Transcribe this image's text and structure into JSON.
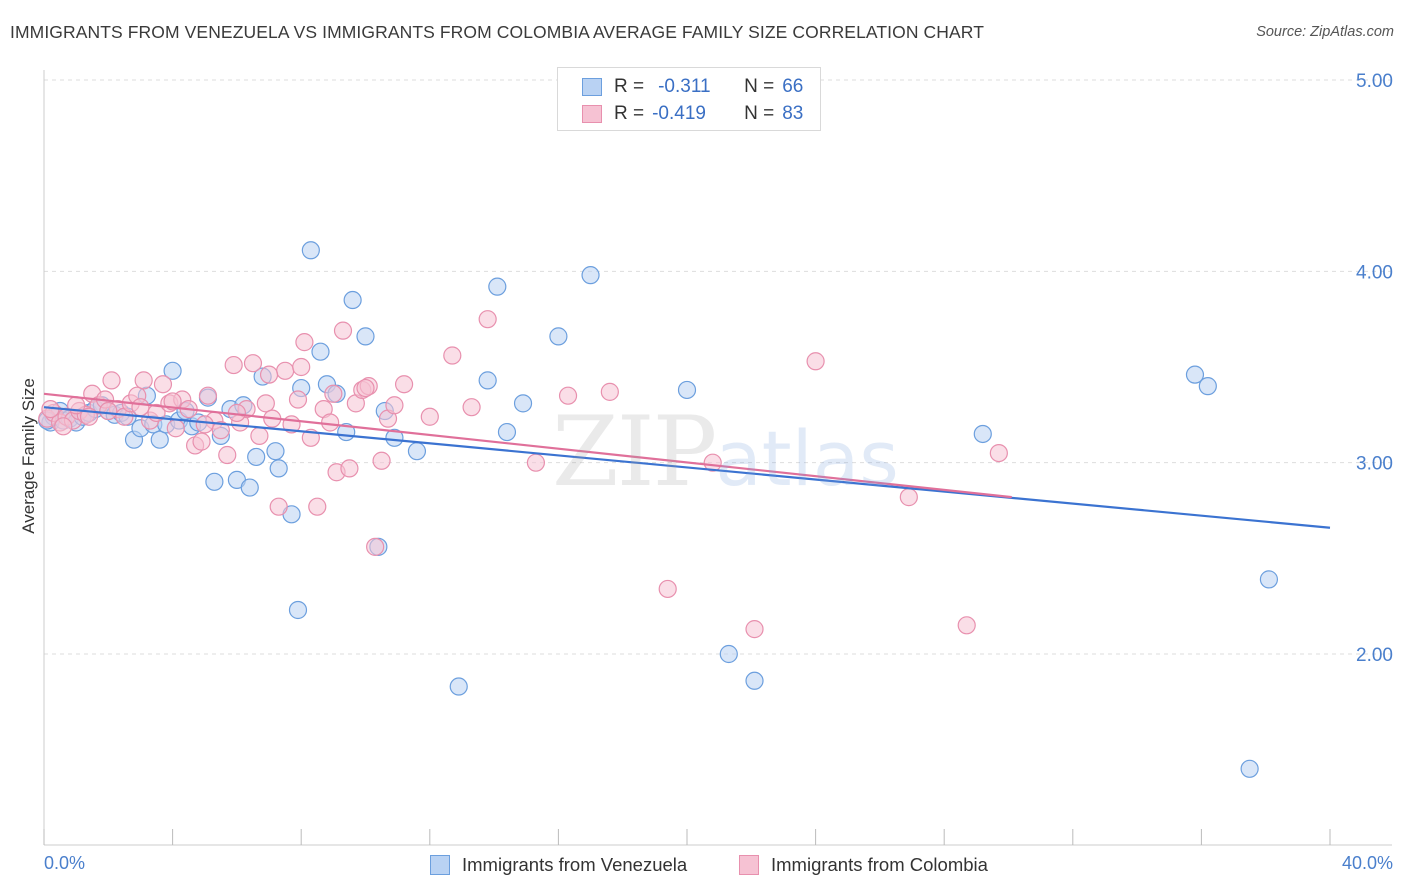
{
  "title": "IMMIGRANTS FROM VENEZUELA VS IMMIGRANTS FROM COLOMBIA AVERAGE FAMILY SIZE CORRELATION CHART",
  "source": "Source: ZipAtlas.com",
  "watermark": {
    "zip": "ZIP",
    "atlas": "atlas"
  },
  "legend": {
    "rows": [
      {
        "r_label": "R =",
        "r_value": "-0.311",
        "n_label": "N =",
        "n_value": "66"
      },
      {
        "r_label": "R =",
        "r_value": "-0.419",
        "n_label": "N =",
        "n_value": "83"
      }
    ]
  },
  "bottom_legend": {
    "venezuela": "Immigrants from Venezuela",
    "colombia": "Immigrants from Colombia"
  },
  "colors": {
    "venezuela_fill": "#b9d2f3",
    "venezuela_stroke": "#6c9fde",
    "venezuela_line": "#3b73d1",
    "colombia_fill": "#f6c2d3",
    "colombia_stroke": "#e890ae",
    "colombia_line": "#e0709a",
    "tick_text": "#4a7fcc",
    "grid": "#dddddd"
  },
  "chart_data": {
    "type": "scatter",
    "title": "IMMIGRANTS FROM VENEZUELA VS IMMIGRANTS FROM COLOMBIA AVERAGE FAMILY SIZE CORRELATION CHART",
    "xlabel": "",
    "ylabel": "Average Family Size",
    "xlim": [
      0,
      40
    ],
    "ylim": [
      1.0,
      5.15
    ],
    "x_tick_labels": [
      "0.0%",
      "40.0%"
    ],
    "y_ticks": [
      2.0,
      3.0,
      4.0,
      5.0
    ],
    "y_tick_labels": [
      "2.00",
      "3.00",
      "4.00",
      "5.00"
    ],
    "grid": "horizontal dashed",
    "legend_position": "top-center",
    "series": [
      {
        "name": "Immigrants from Venezuela",
        "r": -0.311,
        "n": 66,
        "trend": {
          "x": [
            0,
            40
          ],
          "y": [
            3.29,
            2.66
          ]
        },
        "points": [
          [
            0.2,
            3.21
          ],
          [
            0.3,
            3.24
          ],
          [
            0.5,
            3.27
          ],
          [
            0.6,
            3.22
          ],
          [
            0.8,
            3.23
          ],
          [
            1.0,
            3.21
          ],
          [
            1.2,
            3.24
          ],
          [
            1.4,
            3.26
          ],
          [
            1.6,
            3.28
          ],
          [
            1.8,
            3.3
          ],
          [
            2.0,
            3.27
          ],
          [
            2.2,
            3.25
          ],
          [
            2.4,
            3.26
          ],
          [
            2.6,
            3.24
          ],
          [
            2.8,
            3.12
          ],
          [
            3.0,
            3.18
          ],
          [
            3.2,
            3.35
          ],
          [
            3.4,
            3.2
          ],
          [
            3.6,
            3.12
          ],
          [
            3.8,
            3.2
          ],
          [
            4.0,
            3.48
          ],
          [
            4.2,
            3.22
          ],
          [
            4.4,
            3.27
          ],
          [
            4.6,
            3.19
          ],
          [
            4.8,
            3.21
          ],
          [
            5.1,
            3.34
          ],
          [
            5.3,
            2.9
          ],
          [
            5.5,
            3.14
          ],
          [
            5.8,
            3.28
          ],
          [
            6.0,
            2.91
          ],
          [
            6.2,
            3.3
          ],
          [
            6.4,
            2.87
          ],
          [
            6.6,
            3.03
          ],
          [
            6.8,
            3.45
          ],
          [
            7.2,
            3.06
          ],
          [
            7.3,
            2.97
          ],
          [
            7.7,
            2.73
          ],
          [
            7.9,
            2.23
          ],
          [
            8.0,
            3.39
          ],
          [
            8.3,
            4.11
          ],
          [
            8.6,
            3.58
          ],
          [
            8.8,
            3.41
          ],
          [
            9.1,
            3.36
          ],
          [
            9.4,
            3.16
          ],
          [
            9.6,
            3.85
          ],
          [
            10.0,
            3.66
          ],
          [
            10.4,
            2.56
          ],
          [
            10.6,
            3.27
          ],
          [
            10.9,
            3.13
          ],
          [
            11.6,
            3.06
          ],
          [
            12.9,
            1.83
          ],
          [
            13.8,
            3.43
          ],
          [
            14.1,
            3.92
          ],
          [
            14.4,
            3.16
          ],
          [
            14.9,
            3.31
          ],
          [
            16.0,
            3.66
          ],
          [
            17.0,
            3.98
          ],
          [
            20.0,
            3.38
          ],
          [
            21.3,
            2.0
          ],
          [
            22.1,
            1.86
          ],
          [
            29.2,
            3.15
          ],
          [
            35.8,
            3.46
          ],
          [
            36.2,
            3.4
          ],
          [
            37.5,
            1.4
          ],
          [
            38.1,
            2.39
          ],
          [
            0.1,
            3.22
          ]
        ]
      },
      {
        "name": "Immigrants from Colombia",
        "r": -0.419,
        "n": 83,
        "trend": {
          "x": [
            0,
            30.1
          ],
          "y": [
            3.36,
            2.82
          ]
        },
        "points": [
          [
            0.1,
            3.23
          ],
          [
            0.3,
            3.26
          ],
          [
            0.5,
            3.21
          ],
          [
            0.7,
            3.24
          ],
          [
            0.9,
            3.22
          ],
          [
            1.1,
            3.27
          ],
          [
            1.3,
            3.25
          ],
          [
            1.5,
            3.36
          ],
          [
            1.7,
            3.3
          ],
          [
            1.9,
            3.33
          ],
          [
            2.1,
            3.43
          ],
          [
            2.3,
            3.28
          ],
          [
            2.5,
            3.24
          ],
          [
            2.7,
            3.31
          ],
          [
            2.9,
            3.35
          ],
          [
            3.1,
            3.43
          ],
          [
            3.3,
            3.22
          ],
          [
            3.5,
            3.26
          ],
          [
            3.7,
            3.41
          ],
          [
            3.9,
            3.31
          ],
          [
            4.1,
            3.18
          ],
          [
            4.3,
            3.33
          ],
          [
            4.5,
            3.28
          ],
          [
            4.7,
            3.09
          ],
          [
            4.9,
            3.11
          ],
          [
            5.1,
            3.35
          ],
          [
            5.3,
            3.22
          ],
          [
            5.5,
            3.17
          ],
          [
            5.7,
            3.04
          ],
          [
            5.9,
            3.51
          ],
          [
            6.1,
            3.21
          ],
          [
            6.3,
            3.28
          ],
          [
            6.5,
            3.52
          ],
          [
            6.7,
            3.14
          ],
          [
            6.9,
            3.31
          ],
          [
            7.1,
            3.23
          ],
          [
            7.3,
            2.77
          ],
          [
            7.5,
            3.48
          ],
          [
            7.7,
            3.2
          ],
          [
            7.9,
            3.33
          ],
          [
            8.1,
            3.63
          ],
          [
            8.3,
            3.13
          ],
          [
            8.5,
            2.77
          ],
          [
            8.7,
            3.28
          ],
          [
            8.9,
            3.21
          ],
          [
            9.1,
            2.95
          ],
          [
            9.3,
            3.69
          ],
          [
            9.5,
            2.97
          ],
          [
            9.7,
            3.31
          ],
          [
            9.9,
            3.38
          ],
          [
            10.1,
            3.4
          ],
          [
            10.3,
            2.56
          ],
          [
            10.5,
            3.01
          ],
          [
            10.7,
            3.23
          ],
          [
            10.9,
            3.3
          ],
          [
            11.2,
            3.41
          ],
          [
            12.0,
            3.24
          ],
          [
            12.7,
            3.56
          ],
          [
            13.3,
            3.29
          ],
          [
            13.8,
            3.75
          ],
          [
            15.3,
            3.0
          ],
          [
            16.3,
            3.35
          ],
          [
            17.6,
            3.37
          ],
          [
            19.4,
            2.34
          ],
          [
            20.8,
            3.0
          ],
          [
            22.1,
            2.13
          ],
          [
            24.0,
            3.53
          ],
          [
            26.9,
            2.82
          ],
          [
            28.7,
            2.15
          ],
          [
            29.7,
            3.05
          ],
          [
            0.2,
            3.28
          ],
          [
            0.6,
            3.19
          ],
          [
            1.0,
            3.3
          ],
          [
            1.4,
            3.24
          ],
          [
            2.0,
            3.27
          ],
          [
            3.0,
            3.29
          ],
          [
            4.0,
            3.32
          ],
          [
            5.0,
            3.2
          ],
          [
            6.0,
            3.26
          ],
          [
            7.0,
            3.46
          ],
          [
            8.0,
            3.5
          ],
          [
            9.0,
            3.36
          ],
          [
            10.0,
            3.39
          ]
        ]
      }
    ]
  }
}
